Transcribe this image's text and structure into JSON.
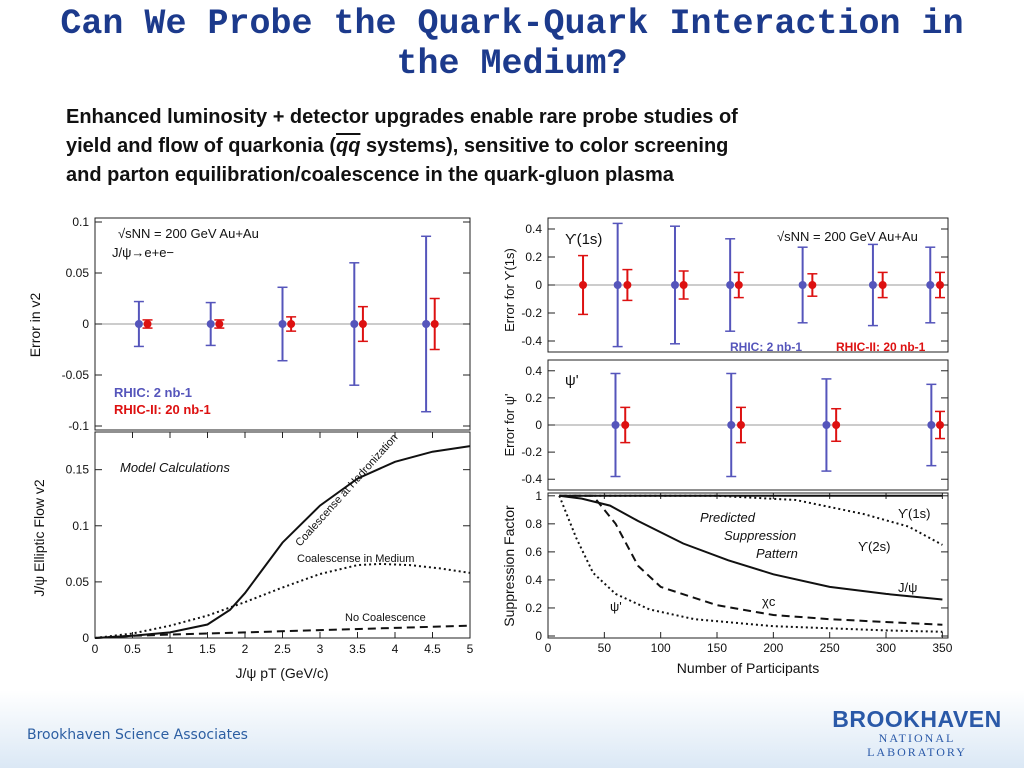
{
  "slide": {
    "title_line1": "Can We Probe the Quark-Quark Interaction in",
    "title_line2": "the Medium?",
    "body_1": "Enhanced luminosity + detector upgrades enable rare probe studies of",
    "body_2a": "yield and flow of quarkonia (",
    "body_qq": "qq",
    "body_2b": " systems), sensitive to color screening",
    "body_3": "and parton equilibration/coalescence in the quark-gluon plasma",
    "footer": "Brookhaven Science Associates",
    "logo_line1": "BROOKHAVEN",
    "logo_line2": "NATIONAL LABORATORY",
    "colors": {
      "title": "#1c3a8c",
      "blue": "#5555bb",
      "red": "#dd1111",
      "footer": "#2d5fa3"
    }
  },
  "chart_data": [
    {
      "type": "scatter",
      "panel": "v2-error",
      "ylabel": "Error in v2",
      "yticks": [
        "0.1",
        "0.05",
        "0",
        "-0.05",
        "-0.1"
      ],
      "ylim": [
        -0.1,
        0.1
      ],
      "xlim": [
        0,
        5
      ],
      "legend_text": [
        "√sNN = 200 GeV Au+Au",
        "J/ψ→e+e−"
      ],
      "series": [
        {
          "name": "RHIC: 2 nb-1",
          "color": "#5555bb",
          "points": [
            {
              "x": 0.5,
              "y": 0,
              "err": 0.022
            },
            {
              "x": 1.5,
              "y": 0,
              "err": 0.021
            },
            {
              "x": 2.5,
              "y": 0,
              "err": 0.036
            },
            {
              "x": 3.5,
              "y": 0,
              "err": 0.06
            },
            {
              "x": 4.5,
              "y": 0,
              "err": 0.086
            }
          ]
        },
        {
          "name": "RHIC-II: 20 nb-1",
          "color": "#dd1111",
          "points": [
            {
              "x": 0.62,
              "y": 0,
              "err": 0.004
            },
            {
              "x": 1.62,
              "y": 0,
              "err": 0.004
            },
            {
              "x": 2.62,
              "y": 0,
              "err": 0.007
            },
            {
              "x": 3.62,
              "y": 0,
              "err": 0.017
            },
            {
              "x": 4.62,
              "y": 0,
              "err": 0.025
            }
          ]
        }
      ]
    },
    {
      "type": "line",
      "panel": "elliptic-flow",
      "title": "Model Calculations",
      "ylabel": "J/ψ Elliptic Flow v2",
      "xlabel": "J/ψ pT (GeV/c)",
      "xticks": [
        "0",
        "0.5",
        "1",
        "1.5",
        "2",
        "2.5",
        "3",
        "3.5",
        "4",
        "4.5",
        "5"
      ],
      "yticks": [
        "0.15",
        "0.1",
        "0.05",
        "0"
      ],
      "xlim": [
        0,
        5
      ],
      "ylim": [
        0,
        0.18
      ],
      "series": [
        {
          "name": "Coalescense at Hadronization",
          "style": "solid",
          "points": [
            [
              0,
              0
            ],
            [
              0.5,
              0.002
            ],
            [
              1,
              0.005
            ],
            [
              1.5,
              0.012
            ],
            [
              1.8,
              0.025
            ],
            [
              2,
              0.04
            ],
            [
              2.2,
              0.058
            ],
            [
              2.5,
              0.085
            ],
            [
              3,
              0.118
            ],
            [
              3.5,
              0.142
            ],
            [
              4,
              0.157
            ],
            [
              4.5,
              0.166
            ],
            [
              5,
              0.171
            ]
          ]
        },
        {
          "name": "Coalescense in Medium",
          "style": "dotted",
          "points": [
            [
              0,
              0
            ],
            [
              0.5,
              0.004
            ],
            [
              1,
              0.011
            ],
            [
              1.5,
              0.02
            ],
            [
              2,
              0.032
            ],
            [
              2.5,
              0.045
            ],
            [
              3,
              0.057
            ],
            [
              3.5,
              0.065
            ],
            [
              3.8,
              0.066
            ],
            [
              4.2,
              0.065
            ],
            [
              4.6,
              0.062
            ],
            [
              5,
              0.058
            ]
          ]
        },
        {
          "name": "No Coalescence",
          "style": "dashed",
          "points": [
            [
              0,
              0
            ],
            [
              0.5,
              0.002
            ],
            [
              1,
              0.003
            ],
            [
              2,
              0.005
            ],
            [
              3,
              0.007
            ],
            [
              4,
              0.009
            ],
            [
              5,
              0.011
            ]
          ]
        }
      ]
    },
    {
      "type": "scatter",
      "panel": "upsilon-error",
      "ylabel": "Error for ϒ(1s)",
      "label": "ϒ(1s)",
      "yticks": [
        "0.4",
        "0.2",
        "0",
        "-0.2",
        "-0.4"
      ],
      "ylim": [
        -0.45,
        0.45
      ],
      "xlim": [
        0,
        355
      ],
      "legend_text": [
        "√sNN = 200 GeV Au+Au"
      ],
      "series": [
        {
          "name": "RHIC: 2 nb-1",
          "color": "#5555bb",
          "points": [
            {
              "x": 57,
              "y": 0,
              "err": 0.44
            },
            {
              "x": 110,
              "y": 0,
              "err": 0.42
            },
            {
              "x": 161,
              "y": 0,
              "err": 0.33
            },
            {
              "x": 228,
              "y": 0,
              "err": 0.27
            },
            {
              "x": 293,
              "y": 0,
              "err": 0.29
            },
            {
              "x": 346,
              "y": 0,
              "err": 0.27
            }
          ]
        },
        {
          "name": "RHIC-II: 20 nb-1",
          "color": "#dd1111",
          "points": [
            {
              "x": 25,
              "y": 0,
              "err": 0.21
            },
            {
              "x": 66,
              "y": 0,
              "err": 0.11
            },
            {
              "x": 118,
              "y": 0,
              "err": 0.1
            },
            {
              "x": 169,
              "y": 0,
              "err": 0.09
            },
            {
              "x": 237,
              "y": 0,
              "err": 0.08
            },
            {
              "x": 302,
              "y": 0,
              "err": 0.09
            },
            {
              "x": 355,
              "y": 0,
              "err": 0.09
            }
          ]
        }
      ]
    },
    {
      "type": "scatter",
      "panel": "psiprime-error",
      "ylabel": "Error for ψ'",
      "label": "ψ'",
      "yticks": [
        "0.4",
        "0.2",
        "0",
        "-0.2",
        "-0.4"
      ],
      "ylim": [
        -0.45,
        0.45
      ],
      "xlim": [
        0,
        355
      ],
      "series": [
        {
          "name": "RHIC: 2 nb-1",
          "color": "#5555bb",
          "points": [
            {
              "x": 55,
              "y": 0,
              "err": 0.38
            },
            {
              "x": 162,
              "y": 0,
              "err": 0.38
            },
            {
              "x": 250,
              "y": 0,
              "err": 0.34
            },
            {
              "x": 347,
              "y": 0,
              "err": 0.3
            }
          ]
        },
        {
          "name": "RHIC-II: 20 nb-1",
          "color": "#dd1111",
          "points": [
            {
              "x": 64,
              "y": 0,
              "err": 0.13
            },
            {
              "x": 171,
              "y": 0,
              "err": 0.13
            },
            {
              "x": 259,
              "y": 0,
              "err": 0.12
            },
            {
              "x": 355,
              "y": 0,
              "err": 0.1
            }
          ]
        }
      ]
    },
    {
      "type": "line",
      "panel": "suppression",
      "ylabel": "Suppression Factor",
      "xlabel": "Number of Participants",
      "title": "Predicted Suppression Pattern",
      "xticks": [
        "0",
        "50",
        "100",
        "150",
        "200",
        "250",
        "300",
        "350"
      ],
      "yticks": [
        "1",
        "0.8",
        "0.6",
        "0.4",
        "0.2",
        "0"
      ],
      "xlim": [
        0,
        355
      ],
      "ylim": [
        0,
        1.02
      ],
      "series": [
        {
          "name": "ϒ(1s)",
          "style": "solid",
          "points": [
            [
              10,
              1
            ],
            [
              350,
              1
            ]
          ]
        },
        {
          "name": "ϒ(2s)",
          "style": "dotted",
          "points": [
            [
              10,
              1
            ],
            [
              150,
              1
            ],
            [
              220,
              0.97
            ],
            [
              280,
              0.87
            ],
            [
              320,
              0.78
            ],
            [
              350,
              0.65
            ]
          ]
        },
        {
          "name": "J/ψ",
          "style": "solid",
          "points": [
            [
              10,
              1
            ],
            [
              30,
              0.98
            ],
            [
              55,
              0.93
            ],
            [
              80,
              0.82
            ],
            [
              120,
              0.66
            ],
            [
              160,
              0.54
            ],
            [
              200,
              0.44
            ],
            [
              250,
              0.35
            ],
            [
              300,
              0.3
            ],
            [
              350,
              0.26
            ]
          ]
        },
        {
          "name": "χc",
          "style": "dashed",
          "points": [
            [
              10,
              1
            ],
            [
              40,
              1
            ],
            [
              60,
              0.8
            ],
            [
              80,
              0.5
            ],
            [
              100,
              0.35
            ],
            [
              150,
              0.22
            ],
            [
              200,
              0.15
            ],
            [
              250,
              0.12
            ],
            [
              300,
              0.1
            ],
            [
              350,
              0.08
            ]
          ]
        },
        {
          "name": "ψ'",
          "style": "dotted",
          "points": [
            [
              10,
              1
            ],
            [
              25,
              0.7
            ],
            [
              40,
              0.45
            ],
            [
              60,
              0.3
            ],
            [
              90,
              0.19
            ],
            [
              130,
              0.12
            ],
            [
              200,
              0.07
            ],
            [
              300,
              0.04
            ],
            [
              350,
              0.03
            ]
          ]
        }
      ]
    }
  ]
}
